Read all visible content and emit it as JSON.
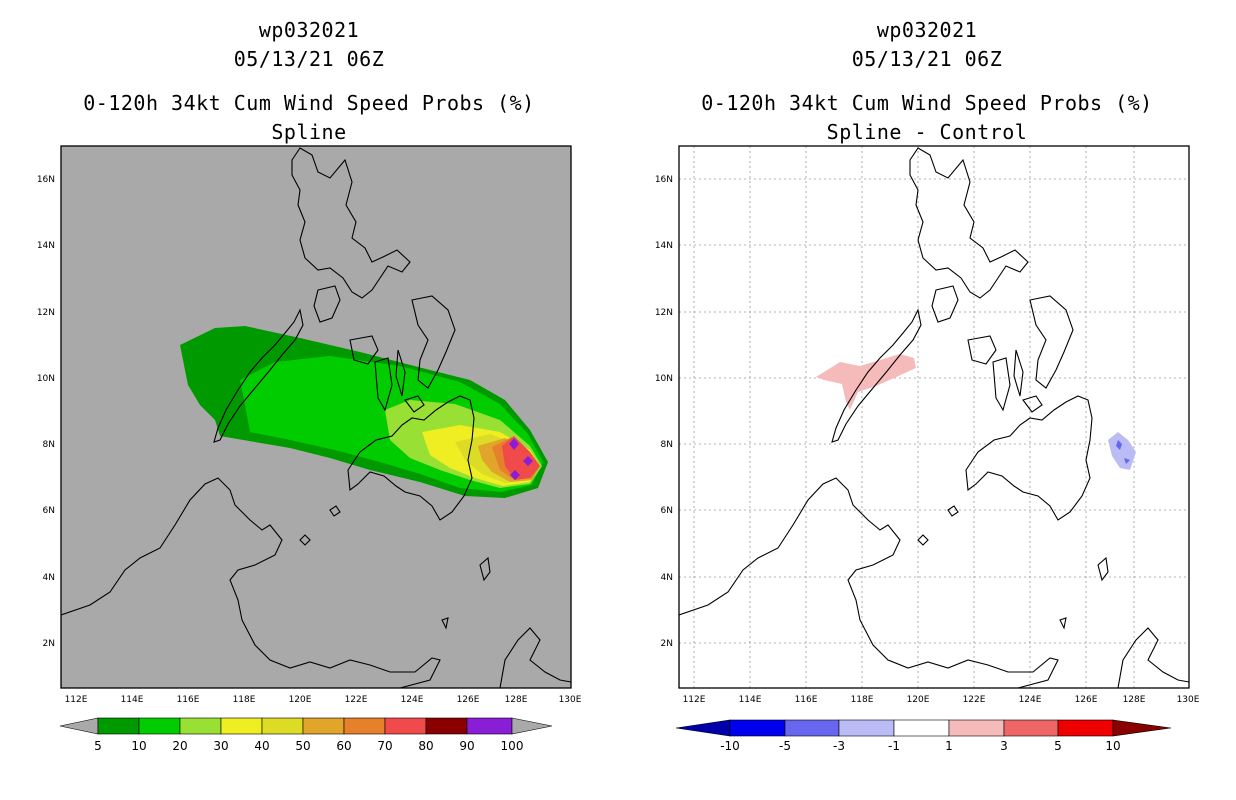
{
  "left": {
    "title_storm": "wp032021",
    "title_time": "05/13/21 06Z",
    "title_product": "0-120h 34kt Cum Wind Speed Probs (%)",
    "title_sub": "Spline",
    "colorbar": {
      "labels": [
        "5",
        "10",
        "20",
        "30",
        "40",
        "50",
        "60",
        "70",
        "80",
        "90",
        "100"
      ],
      "colors": [
        "#009900",
        "#00cc00",
        "#99e034",
        "#eeee22",
        "#dcdc26",
        "#e0a52a",
        "#e6802a",
        "#f04a4a",
        "#8a0000",
        "#8a1ed6"
      ]
    }
  },
  "right": {
    "title_storm": "wp032021",
    "title_time": "05/13/21 06Z",
    "title_product": "0-120h 34kt Cum Wind Speed Probs (%)",
    "title_sub": "Spline - Control",
    "colorbar": {
      "labels": [
        "-10",
        "-5",
        "-3",
        "-1",
        "1",
        "3",
        "5",
        "10"
      ],
      "colors": [
        "#0000aa",
        "#0000ee",
        "#6666ee",
        "#bbbbf5",
        "#ffffff",
        "#f5bbbb",
        "#ee6666",
        "#ee0000",
        "#880000"
      ]
    }
  },
  "axes": {
    "lon_labels": [
      "112E",
      "114E",
      "116E",
      "118E",
      "120E",
      "122E",
      "124E",
      "126E",
      "128E",
      "130E"
    ],
    "lat_labels": [
      "2N",
      "4N",
      "6N",
      "8N",
      "10N",
      "12N",
      "14N",
      "16N"
    ]
  },
  "colors": {
    "map_bg_left": "#a9a9a9",
    "map_bg_right": "#ffffff",
    "coast": "#000000"
  }
}
